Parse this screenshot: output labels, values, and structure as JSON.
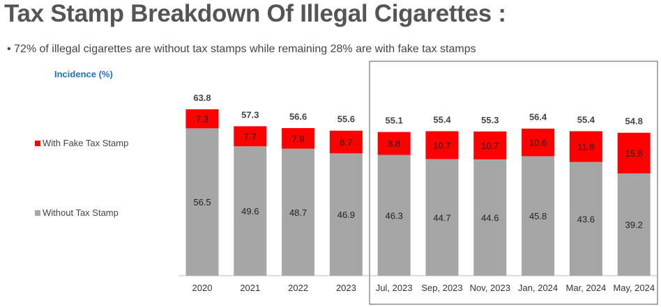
{
  "chart_data": {
    "type": "bar",
    "stacked": true,
    "title": "Tax Stamp Breakdown Of Illegal Cigarettes :",
    "subtitle": "72% of illegal cigarettes are without tax stamps while remaining 28% are with fake tax stamps",
    "ylabel": "Incidence (%)",
    "xlabel": "",
    "ylim": [
      0,
      65
    ],
    "grid": false,
    "legend_position": "left",
    "categories": [
      "2020",
      "2021",
      "2022",
      "2023",
      "Jul, 2023",
      "Sep, 2023",
      "Nov, 2023",
      "Jan, 2024",
      "Mar, 2024",
      "May, 2024"
    ],
    "series": [
      {
        "name": "Without Tax Stamp",
        "color": "#a6a6a6",
        "values": [
          56.5,
          49.6,
          48.7,
          46.9,
          46.3,
          44.7,
          44.6,
          45.8,
          43.6,
          39.2
        ]
      },
      {
        "name": "With Fake Tax Stamp",
        "color": "#ff0000",
        "values": [
          7.3,
          7.7,
          7.9,
          8.7,
          8.8,
          10.7,
          10.7,
          10.6,
          11.8,
          15.6
        ]
      }
    ],
    "totals": [
      "63.8",
      "57.3",
      "56.6",
      "55.6",
      "55.1",
      "55.4",
      "55.3",
      "56.4",
      "55.4",
      "54.8"
    ]
  }
}
